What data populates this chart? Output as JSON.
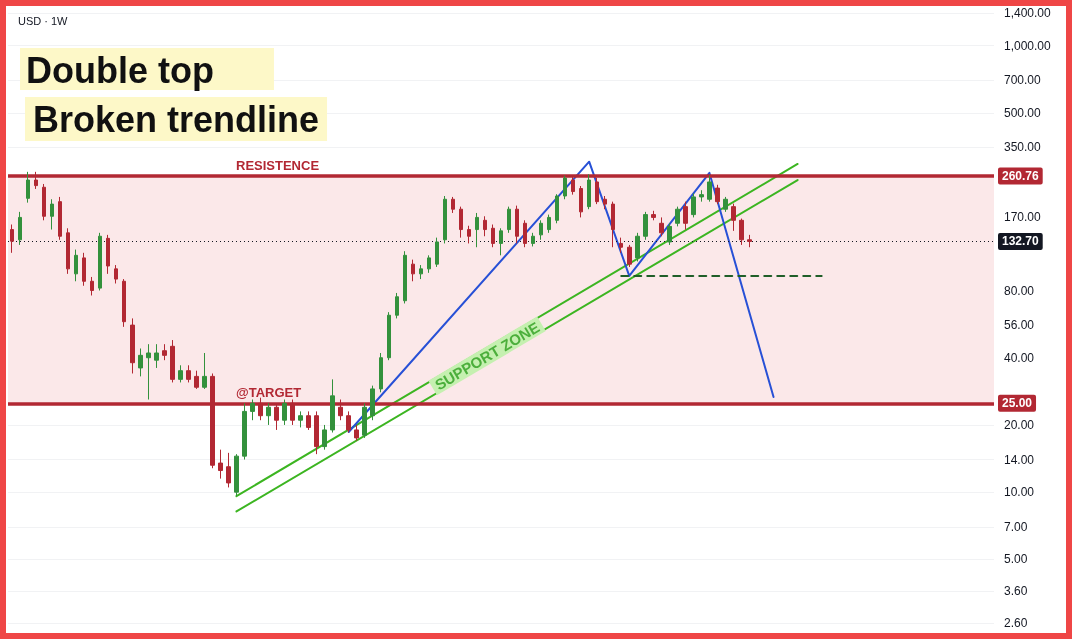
{
  "chart_data": {
    "type": "candlestick",
    "title": "Double top",
    "subtitle": "Broken trendline",
    "categories": [
      null,
      null,
      null,
      null,
      null,
      null,
      null,
      null,
      null,
      null,
      null,
      null,
      null,
      null,
      null,
      null,
      null,
      null,
      null,
      null,
      null,
      null,
      null,
      null,
      null,
      null,
      null,
      null,
      null,
      null,
      null,
      null,
      null,
      null,
      null,
      null,
      null,
      null,
      null,
      null,
      null,
      null,
      null,
      null,
      null,
      null,
      null,
      null,
      null,
      null,
      null,
      null,
      null,
      null,
      null,
      null,
      null,
      null,
      null,
      null,
      null,
      null,
      null,
      null,
      null,
      null,
      null,
      null,
      null,
      null,
      null,
      null,
      null,
      null,
      null,
      null,
      null,
      null,
      null,
      null,
      null,
      null,
      null,
      null,
      null,
      null,
      null,
      null,
      null,
      null,
      null,
      null,
      null,
      null,
      null,
      null,
      null,
      null,
      null,
      null,
      null,
      null,
      null,
      null,
      null,
      null,
      null,
      null,
      null,
      null,
      null,
      null,
      null,
      null,
      null,
      null,
      null,
      null,
      null,
      null,
      null,
      null,
      null
    ],
    "ohlc": [
      [
        150,
        158,
        118,
        133
      ],
      [
        135,
        180,
        128,
        170
      ],
      [
        207,
        272,
        198,
        250
      ],
      [
        250,
        272,
        228,
        236
      ],
      [
        232,
        240,
        165,
        172
      ],
      [
        172,
        205,
        150,
        195
      ],
      [
        200,
        210,
        135,
        140
      ],
      [
        145,
        152,
        95,
        100
      ],
      [
        95,
        122,
        88,
        115
      ],
      [
        112,
        118,
        84,
        88
      ],
      [
        88,
        92,
        76,
        80
      ],
      [
        82,
        145,
        80,
        140
      ],
      [
        137,
        142,
        95,
        103
      ],
      [
        100,
        104,
        86,
        90
      ],
      [
        88,
        90,
        55,
        58
      ],
      [
        56,
        60,
        34,
        38
      ],
      [
        36,
        44,
        33,
        41
      ],
      [
        40,
        46,
        26,
        42
      ],
      [
        39,
        46,
        36,
        42
      ],
      [
        43,
        46,
        39,
        41
      ],
      [
        45,
        48,
        31,
        32
      ],
      [
        32,
        37,
        31,
        35
      ],
      [
        35,
        37,
        31,
        32
      ],
      [
        33,
        35,
        29,
        29.5
      ],
      [
        29.5,
        42,
        29,
        33
      ],
      [
        33,
        34,
        12.8,
        13.2
      ],
      [
        13.5,
        15.5,
        11.5,
        12.5
      ],
      [
        13,
        15,
        10.5,
        11
      ],
      [
        10,
        14.8,
        9.6,
        14.5
      ],
      [
        14.5,
        25,
        14,
        23
      ],
      [
        23,
        26,
        21,
        25
      ],
      [
        25,
        26.5,
        21,
        22
      ],
      [
        22,
        25,
        20,
        24
      ],
      [
        24,
        25,
        19,
        21
      ],
      [
        21,
        26,
        20,
        25
      ],
      [
        25,
        26,
        20,
        21
      ],
      [
        21,
        23,
        19.5,
        22
      ],
      [
        22,
        23,
        19,
        19.5
      ],
      [
        22,
        23,
        14.8,
        16
      ],
      [
        16,
        20,
        15.5,
        19
      ],
      [
        19,
        32,
        18.5,
        27
      ],
      [
        24,
        26,
        21,
        22
      ],
      [
        22,
        23,
        18.5,
        19
      ],
      [
        19,
        20,
        17,
        17.5
      ],
      [
        18,
        25,
        17.5,
        24
      ],
      [
        22,
        30,
        21,
        29
      ],
      [
        29,
        42,
        28,
        40
      ],
      [
        40,
        64,
        39,
        62
      ],
      [
        62,
        78,
        60,
        75
      ],
      [
        72,
        120,
        70,
        115
      ],
      [
        105,
        110,
        88,
        95
      ],
      [
        95,
        104,
        90,
        100
      ],
      [
        100,
        115,
        96,
        112
      ],
      [
        105,
        138,
        102,
        132
      ],
      [
        135,
        212,
        130,
        205
      ],
      [
        205,
        210,
        178,
        185
      ],
      [
        185,
        190,
        138,
        150
      ],
      [
        150,
        156,
        130,
        140
      ],
      [
        150,
        178,
        125,
        170
      ],
      [
        165,
        172,
        140,
        150
      ],
      [
        152,
        158,
        125,
        130
      ],
      [
        130,
        152,
        115,
        148
      ],
      [
        150,
        190,
        145,
        185
      ],
      [
        185,
        192,
        130,
        140
      ],
      [
        160,
        165,
        125,
        130
      ],
      [
        130,
        145,
        126,
        140
      ],
      [
        142,
        165,
        135,
        160
      ],
      [
        150,
        175,
        145,
        170
      ],
      [
        165,
        216,
        160,
        212
      ],
      [
        212,
        262,
        205,
        255
      ],
      [
        250,
        258,
        215,
        222
      ],
      [
        229,
        235,
        170,
        180
      ],
      [
        190,
        265,
        185,
        250
      ],
      [
        245,
        256,
        195,
        200
      ],
      [
        205,
        212,
        185,
        195
      ],
      [
        195,
        200,
        125,
        150
      ],
      [
        130,
        138,
        118,
        125
      ],
      [
        125,
        128,
        102,
        105
      ],
      [
        112,
        145,
        108,
        140
      ],
      [
        140,
        180,
        135,
        175
      ],
      [
        175,
        182,
        165,
        170
      ],
      [
        160,
        170,
        140,
        145
      ],
      [
        132,
        160,
        128,
        155
      ],
      [
        160,
        190,
        155,
        185
      ],
      [
        190,
        200,
        150,
        160
      ],
      [
        175,
        218,
        170,
        210
      ],
      [
        210,
        225,
        200,
        215
      ],
      [
        205,
        262,
        200,
        245
      ],
      [
        230,
        238,
        195,
        200
      ],
      [
        185,
        210,
        180,
        205
      ],
      [
        190,
        196,
        148,
        165
      ],
      [
        165,
        168,
        128,
        135
      ],
      [
        135,
        142,
        125,
        132.7
      ],
      null,
      null,
      null,
      null,
      null,
      null,
      null,
      null,
      null,
      null,
      null,
      null,
      null,
      null,
      null,
      null,
      null,
      null,
      null,
      null,
      null,
      null,
      null,
      null,
      null,
      null,
      null,
      null,
      null,
      null
    ],
    "colors": [
      "#b22833",
      "#33913c",
      "#33913c",
      "#b22833",
      "#b22833",
      "#33913c",
      "#b22833",
      "#b22833",
      "#33913c",
      "#b22833",
      "#b22833",
      "#33913c",
      "#b22833",
      "#b22833",
      "#b22833",
      "#b22833",
      "#33913c",
      "#33913c",
      "#33913c",
      "#b22833",
      "#b22833",
      "#33913c",
      "#b22833",
      "#b22833",
      "#33913c",
      "#b22833",
      "#b22833",
      "#b22833",
      "#33913c",
      "#33913c",
      "#33913c",
      "#b22833",
      "#33913c",
      "#b22833",
      "#33913c",
      "#b22833",
      "#33913c",
      "#b22833",
      "#b22833",
      "#33913c",
      "#33913c",
      "#b22833",
      "#b22833",
      "#b22833",
      "#33913c",
      "#33913c",
      "#33913c",
      "#33913c",
      "#33913c",
      "#33913c",
      "#b22833",
      "#33913c",
      "#33913c",
      "#33913c",
      "#33913c",
      "#b22833",
      "#b22833",
      "#b22833",
      "#33913c",
      "#b22833",
      "#b22833",
      "#33913c",
      "#33913c",
      "#b22833",
      "#b22833",
      "#33913c",
      "#33913c",
      "#33913c",
      "#33913c",
      "#33913c",
      "#b22833",
      "#b22833",
      "#33913c",
      "#b22833",
      "#b22833",
      "#b22833",
      "#b22833",
      "#b22833",
      "#33913c",
      "#33913c",
      "#b22833",
      "#b22833",
      "#33913c",
      "#33913c",
      "#b22833",
      "#33913c",
      "#33913c",
      "#33913c",
      "#b22833",
      "#33913c",
      "#b22833",
      "#b22833",
      "#b22833",
      null,
      null,
      null,
      null,
      null,
      null,
      null,
      null,
      null,
      null,
      null,
      null,
      null,
      null,
      null,
      null,
      null,
      null,
      null,
      null,
      null,
      null,
      null,
      null,
      null,
      null,
      null,
      null,
      null,
      null
    ],
    "series": [
      {
        "type": "line",
        "color": "#3cb521",
        "values": [
          null,
          null,
          null,
          null,
          null,
          null,
          null,
          null,
          null,
          null,
          null,
          null,
          null,
          null,
          null,
          null,
          null,
          null,
          null,
          null,
          null,
          null,
          null,
          null,
          null,
          null,
          null,
          null,
          9.6,
          null,
          null,
          null,
          null,
          null,
          null,
          null,
          null,
          null,
          null,
          null,
          null,
          null,
          null,
          null,
          null,
          null,
          null,
          null,
          null,
          null,
          null,
          null,
          null,
          null,
          null,
          null,
          null,
          null,
          null,
          null,
          null,
          null,
          null,
          null,
          null,
          null,
          null,
          null,
          null,
          null,
          null,
          null,
          null,
          null,
          null,
          null,
          null,
          null,
          null,
          null,
          null,
          null,
          null,
          null,
          null,
          null,
          null,
          null,
          null,
          null,
          null,
          null,
          null,
          null,
          null,
          null,
          null,
          null,
          295,
          null,
          null,
          null,
          null,
          null,
          null,
          null,
          null,
          null,
          null,
          null,
          null,
          null,
          null,
          null,
          null,
          null,
          null,
          null,
          null,
          null,
          null,
          null,
          null
        ]
      },
      {
        "type": "line",
        "color": "#3cb521",
        "values": [
          null,
          null,
          null,
          null,
          null,
          null,
          null,
          null,
          null,
          null,
          null,
          null,
          null,
          null,
          null,
          null,
          null,
          null,
          null,
          null,
          null,
          null,
          null,
          null,
          null,
          null,
          null,
          null,
          8.2,
          null,
          null,
          null,
          null,
          null,
          null,
          null,
          null,
          null,
          null,
          null,
          null,
          null,
          null,
          null,
          null,
          null,
          null,
          null,
          null,
          null,
          null,
          null,
          null,
          null,
          null,
          null,
          null,
          null,
          null,
          null,
          null,
          null,
          null,
          null,
          null,
          null,
          null,
          null,
          null,
          null,
          null,
          null,
          null,
          null,
          null,
          null,
          null,
          null,
          null,
          null,
          null,
          null,
          null,
          null,
          null,
          null,
          null,
          null,
          null,
          null,
          null,
          null,
          null,
          null,
          null,
          null,
          null,
          null,
          250,
          null,
          null,
          null,
          null,
          null,
          null,
          null,
          null,
          null,
          null,
          null,
          null,
          null,
          null,
          null,
          null,
          null,
          null,
          null,
          null,
          null,
          null,
          null,
          null
        ]
      },
      {
        "type": "line",
        "color": "#2750d6",
        "values": [
          null,
          null,
          null,
          null,
          null,
          null,
          null,
          null,
          null,
          null,
          null,
          null,
          null,
          null,
          null,
          null,
          null,
          null,
          null,
          null,
          null,
          null,
          null,
          null,
          null,
          null,
          null,
          null,
          null,
          null,
          null,
          null,
          null,
          null,
          null,
          null,
          null,
          null,
          null,
          null,
          null,
          null,
          18.6,
          null,
          null,
          null,
          null,
          null,
          null,
          null,
          null,
          null,
          null,
          null,
          null,
          null,
          null,
          null,
          null,
          null,
          null,
          null,
          null,
          null,
          null,
          null,
          null,
          null,
          null,
          null,
          null,
          null,
          302,
          null,
          null,
          null,
          null,
          93,
          null,
          null,
          null,
          null,
          null,
          null,
          null,
          null,
          null,
          269,
          null,
          null,
          null,
          null,
          null,
          null,
          null,
          26.7,
          null,
          null,
          null,
          null,
          null,
          null,
          null,
          null,
          null,
          null,
          null,
          null,
          null,
          null,
          null,
          null,
          null,
          null,
          null,
          null,
          null,
          null,
          null,
          null,
          null,
          null,
          null
        ]
      },
      {
        "type": "line",
        "color": "#1f5e28",
        "line_style": "dashed",
        "values": [
          null,
          null,
          null,
          null,
          null,
          null,
          null,
          null,
          null,
          null,
          null,
          null,
          null,
          null,
          null,
          null,
          null,
          null,
          null,
          null,
          null,
          null,
          null,
          null,
          null,
          null,
          null,
          null,
          null,
          null,
          null,
          null,
          null,
          null,
          null,
          null,
          null,
          null,
          null,
          null,
          null,
          null,
          null,
          null,
          null,
          null,
          null,
          null,
          null,
          null,
          null,
          null,
          null,
          null,
          null,
          null,
          null,
          null,
          null,
          null,
          null,
          null,
          null,
          null,
          null,
          null,
          null,
          null,
          null,
          null,
          null,
          null,
          null,
          null,
          null,
          null,
          93,
          93,
          93,
          93,
          93,
          93,
          93,
          93,
          93,
          93,
          93,
          93,
          93,
          93,
          93,
          93,
          93,
          93,
          93,
          93,
          93,
          93,
          93,
          93,
          93,
          93,
          null,
          null,
          null,
          null,
          null,
          null,
          null,
          null,
          null,
          null,
          null,
          null,
          null,
          null,
          null,
          null,
          null,
          null,
          null,
          null,
          null
        ]
      }
    ],
    "ylim": [
      2.2,
      1600
    ],
    "yticks": [
      {
        "value": 2.6,
        "label": "2.60"
      },
      {
        "value": 3.6,
        "label": "3.60"
      },
      {
        "value": 5,
        "label": "5.00"
      },
      {
        "value": 7,
        "label": "7.00"
      },
      {
        "value": 10,
        "label": "10.00"
      },
      {
        "value": 14,
        "label": "14.00"
      },
      {
        "value": 20,
        "label": "20.00"
      },
      {
        "value": 40,
        "label": "40.00"
      },
      {
        "value": 56,
        "label": "56.00"
      },
      {
        "value": 80,
        "label": "80.00"
      },
      {
        "value": 170,
        "label": "170.00"
      },
      {
        "value": 350,
        "label": "350.00"
      },
      {
        "value": 500,
        "label": "500.00"
      },
      {
        "value": 700,
        "label": "700.00"
      },
      {
        "value": 1000,
        "label": "1,000.00"
      },
      {
        "value": 1400,
        "label": "1,400.00"
      }
    ],
    "log": "y",
    "grid": "y",
    "tick_labels": "y",
    "ref_lines": [
      {
        "axis": "y",
        "value": 260.76,
        "label": "260.76",
        "color": "#b22833"
      },
      {
        "axis": "y",
        "value": 25,
        "label": "25.00",
        "color": "#b22833"
      },
      {
        "axis": "y",
        "value": 132.7,
        "label": "132.70",
        "color": "#131722",
        "line_style": "dotted"
      }
    ],
    "bands": [
      {
        "axis": "y",
        "from": 25,
        "to": 260.76,
        "color": "#fbe8e9"
      }
    ],
    "annotations": [
      "USD · 1W",
      "SUPPORT ZONE",
      {
        "text": "RESISTENCE",
        "y": 260.76
      },
      {
        "text": "@TARGET",
        "y": 25
      }
    ]
  }
}
